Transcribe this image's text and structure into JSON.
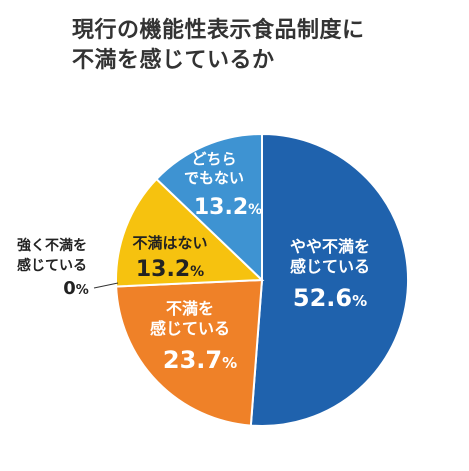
{
  "title_lines": [
    "現行の機能性表示食品制度に",
    "不満を感じているか"
  ],
  "chart_data": {
    "type": "pie",
    "title": "現行の機能性表示食品制度に不満を感じているか",
    "slices": [
      {
        "label_lines": [
          "やや不満を",
          "感じている"
        ],
        "value": 52.6,
        "value_text": "52.6",
        "color": "#1f62ad"
      },
      {
        "label_lines": [
          "不満を",
          "感じている"
        ],
        "value": 23.7,
        "value_text": "23.7",
        "color": "#ef8128"
      },
      {
        "label_lines": [
          "不満はない"
        ],
        "value": 13.2,
        "value_text": "13.2",
        "color": "#f6c20f"
      },
      {
        "label_lines": [
          "どちら",
          "でもない"
        ],
        "value": 13.2,
        "value_text": "13.2",
        "color": "#3e93d2"
      },
      {
        "label_lines": [
          "強く不満を",
          "感じている"
        ],
        "value": 0,
        "value_text": "0",
        "color": "#ffffff"
      }
    ],
    "unit": "%"
  }
}
